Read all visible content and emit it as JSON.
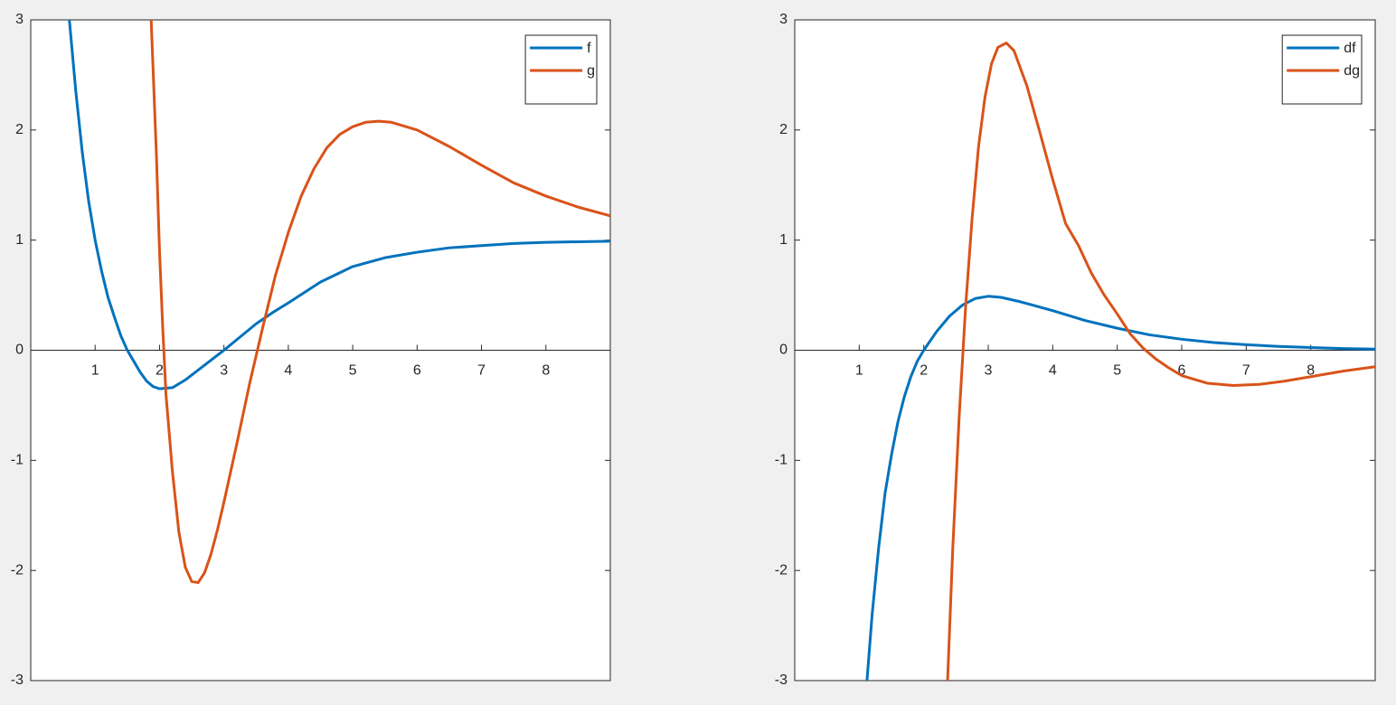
{
  "chart_data": [
    {
      "type": "line",
      "xlim": [
        0,
        9
      ],
      "ylim": [
        -3,
        3
      ],
      "xticks": [
        1,
        2,
        3,
        4,
        5,
        6,
        7,
        8
      ],
      "yticks": [
        -3,
        -2,
        -1,
        0,
        1,
        2,
        3
      ],
      "legend": "northeast",
      "series": [
        {
          "name": "f",
          "color": "#0072bd",
          "x": [
            0.6,
            0.7,
            0.8,
            0.9,
            1.0,
            1.1,
            1.2,
            1.3,
            1.4,
            1.5,
            1.6,
            1.7,
            1.8,
            1.9,
            2.0,
            2.2,
            2.4,
            2.6,
            2.8,
            3.0,
            3.25,
            3.5,
            3.75,
            4.0,
            4.5,
            5.0,
            5.5,
            6.0,
            6.5,
            7.0,
            7.5,
            8.0,
            8.5,
            9.0
          ],
          "values": [
            3.0,
            2.35,
            1.8,
            1.35,
            1.0,
            0.72,
            0.48,
            0.3,
            0.13,
            0.0,
            -0.1,
            -0.2,
            -0.28,
            -0.33,
            -0.35,
            -0.34,
            -0.27,
            -0.18,
            -0.09,
            0.0,
            0.12,
            0.24,
            0.34,
            0.43,
            0.62,
            0.76,
            0.84,
            0.89,
            0.93,
            0.95,
            0.97,
            0.98,
            0.985,
            0.99
          ]
        },
        {
          "name": "g",
          "color": "#d95319",
          "x": [
            1.87,
            1.95,
            2.0,
            2.05,
            2.1,
            2.2,
            2.3,
            2.4,
            2.5,
            2.6,
            2.7,
            2.8,
            2.9,
            3.0,
            3.2,
            3.4,
            3.6,
            3.8,
            4.0,
            4.2,
            4.4,
            4.6,
            4.8,
            5.0,
            5.2,
            5.4,
            5.6,
            6.0,
            6.5,
            7.0,
            7.5,
            8.0,
            8.5,
            9.0
          ],
          "values": [
            3.0,
            1.8,
            0.9,
            0.2,
            -0.4,
            -1.1,
            -1.65,
            -1.97,
            -2.1,
            -2.11,
            -2.02,
            -1.85,
            -1.63,
            -1.38,
            -0.85,
            -0.3,
            0.2,
            0.68,
            1.07,
            1.4,
            1.65,
            1.84,
            1.96,
            2.03,
            2.07,
            2.08,
            2.07,
            2.0,
            1.85,
            1.68,
            1.52,
            1.4,
            1.3,
            1.22
          ]
        }
      ]
    },
    {
      "type": "line",
      "xlim": [
        0,
        9
      ],
      "ylim": [
        -3,
        3
      ],
      "xticks": [
        1,
        2,
        3,
        4,
        5,
        6,
        7,
        8
      ],
      "yticks": [
        -3,
        -2,
        -1,
        0,
        1,
        2,
        3
      ],
      "legend": "northeast",
      "series": [
        {
          "name": "df",
          "color": "#0072bd",
          "x": [
            1.12,
            1.2,
            1.3,
            1.4,
            1.5,
            1.6,
            1.7,
            1.8,
            1.9,
            2.0,
            2.2,
            2.4,
            2.6,
            2.8,
            3.0,
            3.2,
            3.5,
            4.0,
            4.5,
            5.0,
            5.5,
            6.0,
            6.5,
            7.0,
            7.5,
            8.0,
            8.5,
            9.0
          ],
          "values": [
            -3.0,
            -2.4,
            -1.8,
            -1.3,
            -0.95,
            -0.65,
            -0.42,
            -0.24,
            -0.1,
            0.0,
            0.17,
            0.31,
            0.41,
            0.47,
            0.49,
            0.48,
            0.44,
            0.36,
            0.27,
            0.2,
            0.14,
            0.1,
            0.07,
            0.05,
            0.035,
            0.025,
            0.015,
            0.01
          ]
        },
        {
          "name": "dg",
          "color": "#d95319",
          "x": [
            2.37,
            2.45,
            2.55,
            2.65,
            2.75,
            2.85,
            2.95,
            3.05,
            3.15,
            3.28,
            3.4,
            3.6,
            3.8,
            4.0,
            4.2,
            4.4,
            4.6,
            4.8,
            5.0,
            5.2,
            5.4,
            5.6,
            5.8,
            6.0,
            6.4,
            6.8,
            7.2,
            7.6,
            8.0,
            8.5,
            9.0
          ],
          "values": [
            -3.0,
            -1.8,
            -0.6,
            0.4,
            1.2,
            1.85,
            2.3,
            2.6,
            2.75,
            2.79,
            2.72,
            2.4,
            1.98,
            1.55,
            1.15,
            0.95,
            0.7,
            0.5,
            0.33,
            0.15,
            0.02,
            -0.08,
            -0.16,
            -0.23,
            -0.3,
            -0.32,
            -0.31,
            -0.28,
            -0.24,
            -0.19,
            -0.15
          ]
        }
      ]
    }
  ]
}
